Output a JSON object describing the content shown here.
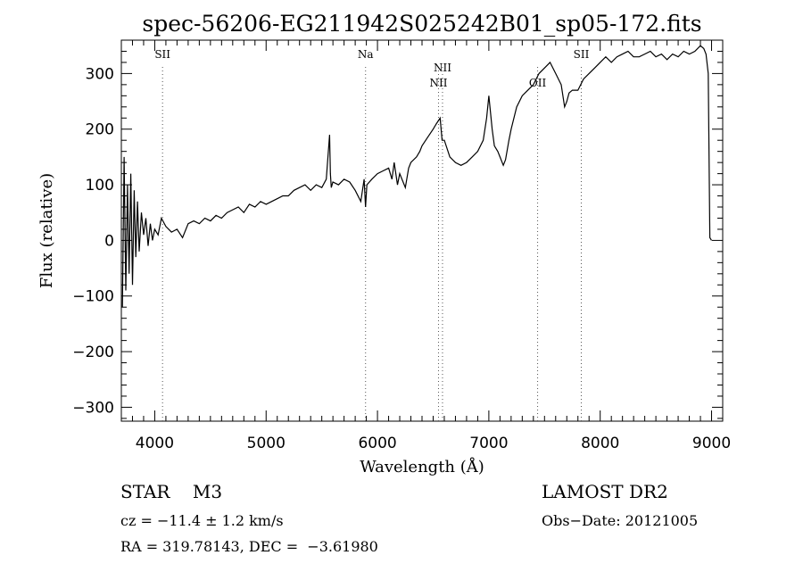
{
  "chart_data": {
    "type": "line",
    "title": "spec-56206-EG211942S025242B01_sp05-172.fits",
    "xlabel": "Wavelength (Å)",
    "ylabel": "Flux (relative)",
    "xlim": [
      3700,
      9100
    ],
    "ylim": [
      -325,
      360
    ],
    "x_ticks": [
      4000,
      5000,
      6000,
      7000,
      8000,
      9000
    ],
    "y_ticks": [
      -300,
      -200,
      -100,
      0,
      100,
      200,
      300
    ],
    "grid": false,
    "series": [
      {
        "x": [
          3710,
          3725,
          3740,
          3755,
          3770,
          3785,
          3800,
          3815,
          3830,
          3845,
          3860,
          3880,
          3900,
          3920,
          3940,
          3960,
          3980,
          4000,
          4030,
          4060,
          4100,
          4150,
          4200,
          4250,
          4300,
          4350,
          4400,
          4450,
          4500,
          4550,
          4600,
          4650,
          4700,
          4750,
          4800,
          4850,
          4900,
          4950,
          5000,
          5050,
          5100,
          5150,
          5200,
          5250,
          5300,
          5350,
          5400,
          5450,
          5500,
          5540,
          5570,
          5577,
          5585,
          5600,
          5650,
          5700,
          5750,
          5800,
          5850,
          5880,
          5893,
          5905,
          5950,
          6000,
          6050,
          6100,
          6130,
          6150,
          6180,
          6200,
          6250,
          6280,
          6300,
          6350,
          6380,
          6400,
          6450,
          6500,
          6530,
          6563,
          6580,
          6600,
          6650,
          6700,
          6750,
          6800,
          6850,
          6900,
          6950,
          6980,
          7000,
          7030,
          7050,
          7080,
          7100,
          7130,
          7150,
          7180,
          7200,
          7250,
          7300,
          7350,
          7400,
          7450,
          7500,
          7550,
          7600,
          7650,
          7680,
          7700,
          7720,
          7750,
          7800,
          7850,
          7900,
          7950,
          8000,
          8050,
          8100,
          8150,
          8200,
          8250,
          8300,
          8350,
          8400,
          8450,
          8500,
          8550,
          8600,
          8650,
          8700,
          8750,
          8800,
          8850,
          8900,
          8930,
          8950,
          8970,
          8985,
          9000
        ],
        "y": [
          -120,
          150,
          -90,
          100,
          -60,
          120,
          -80,
          90,
          -30,
          70,
          -20,
          50,
          10,
          40,
          -10,
          30,
          0,
          20,
          10,
          40,
          25,
          15,
          20,
          5,
          30,
          35,
          30,
          40,
          35,
          45,
          40,
          50,
          55,
          60,
          50,
          65,
          60,
          70,
          65,
          70,
          75,
          80,
          80,
          90,
          95,
          100,
          90,
          100,
          95,
          110,
          190,
          120,
          95,
          105,
          100,
          110,
          105,
          90,
          70,
          110,
          60,
          100,
          110,
          120,
          125,
          130,
          110,
          140,
          100,
          120,
          95,
          130,
          140,
          150,
          160,
          170,
          185,
          200,
          210,
          220,
          180,
          180,
          150,
          140,
          135,
          140,
          150,
          160,
          180,
          220,
          260,
          200,
          170,
          160,
          150,
          135,
          145,
          180,
          200,
          240,
          260,
          270,
          280,
          300,
          310,
          320,
          300,
          280,
          240,
          250,
          265,
          270,
          270,
          290,
          300,
          310,
          320,
          330,
          320,
          330,
          335,
          340,
          330,
          330,
          335,
          340,
          330,
          335,
          325,
          335,
          330,
          340,
          335,
          340,
          350,
          345,
          335,
          300,
          5,
          0
        ]
      }
    ],
    "line_markers": [
      {
        "label": "SII",
        "x": 4070,
        "position": "top"
      },
      {
        "label": "Na",
        "x": 5893,
        "position": "top"
      },
      {
        "label": "NII",
        "x": 6548,
        "position": "lower"
      },
      {
        "label": "NII",
        "x": 6584,
        "position": "upper"
      },
      {
        "label": "OII",
        "x": 7438,
        "position": "lower"
      },
      {
        "label": "SII",
        "x": 7830,
        "position": "top"
      }
    ],
    "annotations": {
      "class": "STAR",
      "subclass": "M3",
      "cz": "cz = −11.4 ± 1.2 km/s",
      "radec": "RA = 319.78143, DEC =  −3.61980",
      "survey": "LAMOST DR2",
      "obs_date": "Obs−Date: 20121005"
    }
  }
}
